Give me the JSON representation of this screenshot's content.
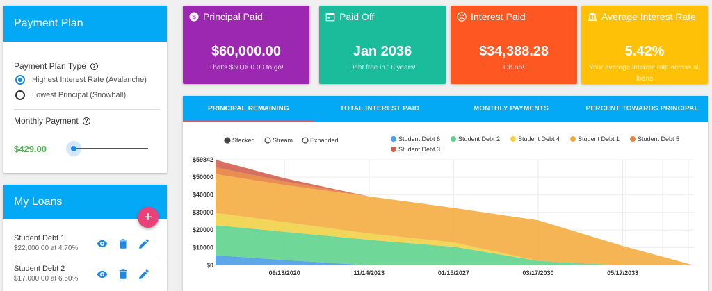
{
  "payment_plan": {
    "title": "Payment Plan",
    "type_label": "Payment Plan Type",
    "options": [
      "Highest Interest Rate (Avalanche)",
      "Lowest Principal (Snowball)"
    ],
    "selected_option": 0,
    "monthly_label": "Monthly Payment",
    "monthly_value": "$429.00",
    "slider_level": 0.02
  },
  "loans": {
    "title": "My Loans",
    "add_icon": "plus",
    "items": [
      {
        "name": "Student Debt 1",
        "detail": "$22,000.00 at 4.70%"
      },
      {
        "name": "Student Debt 2",
        "detail": "$17,000.00 at 6.50%"
      }
    ]
  },
  "stats": [
    {
      "title": "Principal Paid",
      "value": "$60,000.00",
      "sub": "That's $60,000.00 to go!",
      "color": "#9c27b0",
      "icon": "dollar-icon"
    },
    {
      "title": "Paid Off",
      "value": "Jan 2036",
      "sub": "Debt free in 18 years!",
      "color": "#1abc9c",
      "icon": "calendar-icon"
    },
    {
      "title": "Interest Paid",
      "value": "$34,388.28",
      "sub": "Oh no!",
      "color": "#ff5722",
      "icon": "sad-face-icon"
    },
    {
      "title": "Average Interest Rate",
      "value": "5.42%",
      "sub": "Your average interest rate across all loans",
      "color": "#ffc107",
      "icon": "bank-icon"
    }
  ],
  "tabs": [
    "PRINCIPAL REMAINING",
    "TOTAL INTEREST PAID",
    "MONTHLY PAYMENTS",
    "PERCENT TOWARDS PRINCIPAL"
  ],
  "active_tab": 0,
  "chart_controls": [
    "Stacked",
    "Stream",
    "Expanded"
  ],
  "chart_data": {
    "type": "area",
    "stacked": true,
    "y_tick_labels": [
      "$0",
      "$10000",
      "$20000",
      "$30000",
      "$40000",
      "$50000",
      "$59842"
    ],
    "y_ticks": [
      0,
      10000,
      20000,
      30000,
      40000,
      50000,
      59842
    ],
    "ylim": [
      0,
      59842
    ],
    "x_tick_labels": [
      "09/13/2020",
      "11/14/2023",
      "01/15/2027",
      "03/17/2030",
      "05/17/2033"
    ],
    "x": [
      "2018-02",
      "2020-09",
      "2023-11",
      "2027-01",
      "2030-03",
      "2033-05",
      "2036-01"
    ],
    "xlim": [
      "2018-02",
      "2036-01"
    ],
    "grid": true,
    "legend_position": "top",
    "series": [
      {
        "name": "Student Debt 6",
        "color": "#4a9de8",
        "values": [
          5700,
          3000,
          0,
          0,
          0,
          0,
          0
        ]
      },
      {
        "name": "Student Debt 2",
        "color": "#5fd38d",
        "values": [
          17000,
          16000,
          14500,
          10500,
          2500,
          0,
          0
        ]
      },
      {
        "name": "Student Debt 4",
        "color": "#f1d248",
        "values": [
          7000,
          5500,
          3500,
          2500,
          0,
          0,
          0
        ]
      },
      {
        "name": "Student Debt 1",
        "color": "#f5ad42",
        "values": [
          22000,
          21000,
          21000,
          19500,
          23000,
          11000,
          0
        ]
      },
      {
        "name": "Student Debt 5",
        "color": "#e5823e",
        "values": [
          3800,
          2000,
          0,
          0,
          0,
          0,
          0
        ]
      },
      {
        "name": "Student Debt 3",
        "color": "#d2604f",
        "values": [
          4342,
          1800,
          0,
          0,
          0,
          0,
          0
        ]
      }
    ]
  }
}
